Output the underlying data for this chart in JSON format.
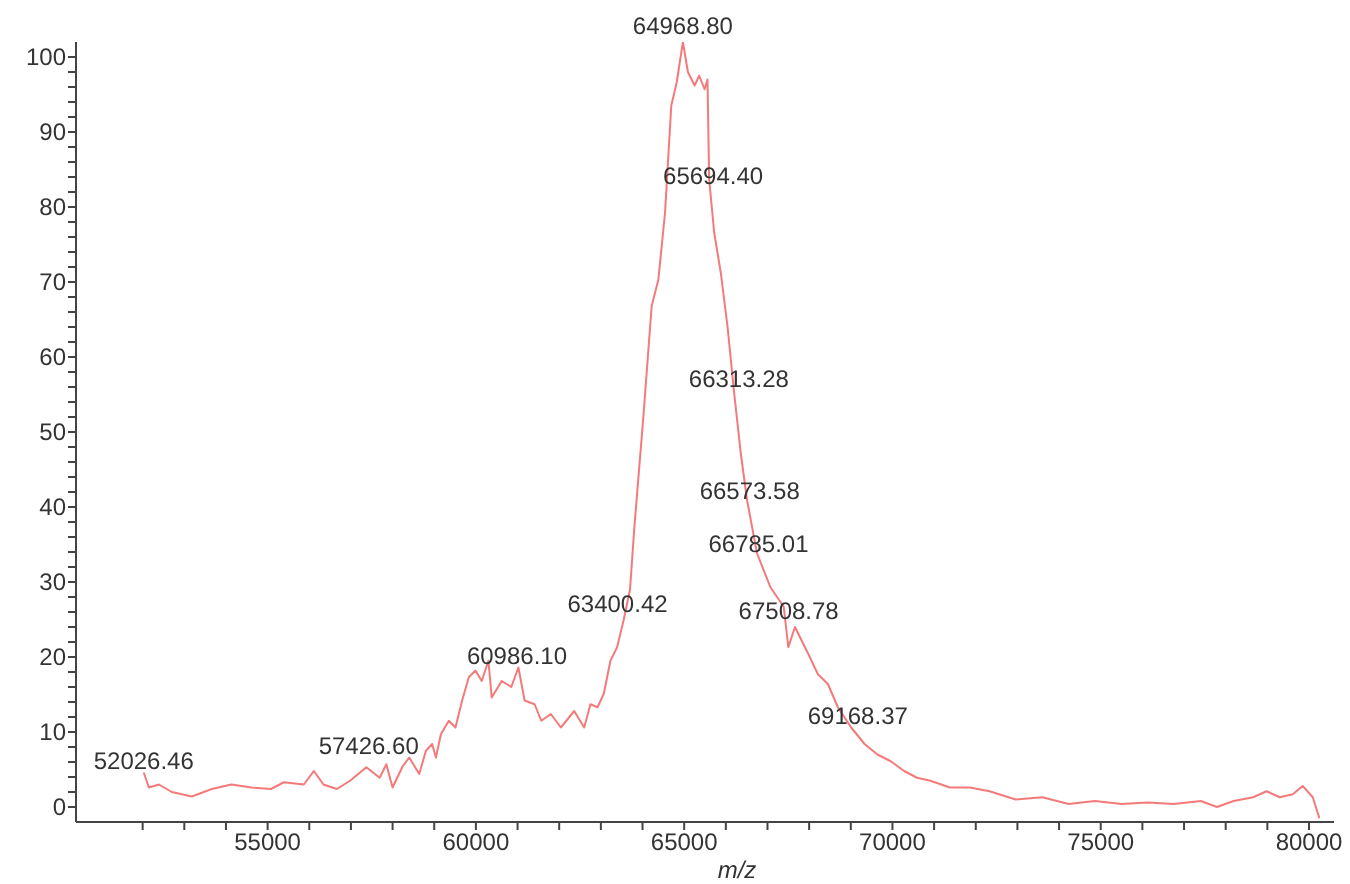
{
  "chart_data": {
    "type": "line",
    "xlabel": "m/z",
    "color": "#f47a7a",
    "marker": "none",
    "line_style": "solid",
    "x": [
      52026,
      52150,
      52390,
      52700,
      53180,
      53660,
      54130,
      54610,
      55080,
      55390,
      55870,
      56110,
      56340,
      56660,
      56980,
      57370,
      57690,
      57850,
      58000,
      58240,
      58400,
      58640,
      58800,
      58950,
      59040,
      59160,
      59350,
      59510,
      59670,
      59830,
      59990,
      60140,
      60300,
      60380,
      60620,
      60850,
      61020,
      61170,
      61410,
      61570,
      61800,
      62040,
      62360,
      62600,
      62750,
      62920,
      63070,
      63230,
      63390,
      63550,
      63700,
      63800,
      64020,
      64220,
      64380,
      64540,
      64690,
      64820,
      64969,
      65090,
      65250,
      65360,
      65490,
      65560,
      65600,
      65720,
      65880,
      66040,
      66200,
      66360,
      66510,
      66750,
      67070,
      67390,
      67500,
      67660,
      67820,
      67980,
      68210,
      68450,
      68690,
      69010,
      69330,
      69640,
      69960,
      70280,
      70590,
      70910,
      71380,
      71860,
      72330,
      72960,
      73600,
      74230,
      74860,
      75500,
      76130,
      76760,
      77400,
      77790,
      78190,
      78660,
      78980,
      79300,
      79610,
      79850,
      80090,
      80250
    ],
    "values": [
      4.6,
      2.6,
      3.0,
      2.0,
      1.4,
      2.4,
      3.0,
      2.6,
      2.4,
      3.3,
      3.0,
      4.8,
      3.0,
      2.4,
      3.5,
      5.3,
      3.9,
      5.7,
      2.6,
      5.4,
      6.6,
      4.4,
      7.5,
      8.4,
      6.6,
      9.7,
      11.5,
      10.6,
      14.2,
      17.3,
      18.2,
      16.8,
      19.5,
      14.6,
      16.8,
      16.0,
      18.6,
      14.2,
      13.7,
      11.5,
      12.4,
      10.6,
      12.8,
      10.6,
      13.7,
      13.3,
      15.1,
      19.5,
      21.3,
      25.0,
      29.0,
      37.0,
      52.0,
      66.8,
      70.3,
      79.2,
      93.5,
      96.6,
      102.0,
      98.0,
      96.2,
      97.5,
      95.7,
      97.0,
      83.7,
      76.6,
      71.2,
      64.1,
      55.2,
      47.1,
      40.9,
      33.8,
      29.3,
      26.7,
      21.3,
      24.0,
      22.2,
      20.4,
      17.7,
      16.4,
      13.3,
      10.6,
      8.4,
      7.0,
      6.1,
      4.8,
      3.9,
      3.5,
      2.6,
      2.6,
      2.1,
      1.0,
      1.3,
      0.4,
      0.8,
      0.4,
      0.6,
      0.4,
      0.8,
      0.0,
      0.8,
      1.3,
      2.1,
      1.3,
      1.7,
      2.8,
      1.3,
      -1.5
    ],
    "xlim": [
      50400,
      80600
    ],
    "ylim": [
      -2,
      102
    ],
    "xticks": [
      {
        "value": 52000,
        "label": null
      },
      {
        "value": 53000,
        "label": null
      },
      {
        "value": 54000,
        "label": null
      },
      55000,
      {
        "value": 56000,
        "label": null
      },
      {
        "value": 57000,
        "label": null
      },
      {
        "value": 58000,
        "label": null
      },
      {
        "value": 59000,
        "label": null
      },
      60000,
      {
        "value": 61000,
        "label": null
      },
      {
        "value": 62000,
        "label": null
      },
      {
        "value": 63000,
        "label": null
      },
      {
        "value": 64000,
        "label": null
      },
      65000,
      {
        "value": 66000,
        "label": null
      },
      {
        "value": 67000,
        "label": null
      },
      {
        "value": 68000,
        "label": null
      },
      {
        "value": 69000,
        "label": null
      },
      70000,
      {
        "value": 71000,
        "label": null
      },
      {
        "value": 72000,
        "label": null
      },
      {
        "value": 73000,
        "label": null
      },
      {
        "value": 74000,
        "label": null
      },
      75000,
      {
        "value": 76000,
        "label": null
      },
      {
        "value": 77000,
        "label": null
      },
      {
        "value": 78000,
        "label": null
      },
      {
        "value": 79000,
        "label": null
      },
      80000
    ],
    "yticks": [
      0,
      {
        "value": 2,
        "label": null
      },
      {
        "value": 4,
        "label": null
      },
      {
        "value": 6,
        "label": null
      },
      {
        "value": 8,
        "label": null
      },
      10,
      {
        "value": 12,
        "label": null
      },
      {
        "value": 14,
        "label": null
      },
      {
        "value": 16,
        "label": null
      },
      {
        "value": 18,
        "label": null
      },
      20,
      {
        "value": 22,
        "label": null
      },
      {
        "value": 24,
        "label": null
      },
      {
        "value": 26,
        "label": null
      },
      {
        "value": 28,
        "label": null
      },
      30,
      {
        "value": 32,
        "label": null
      },
      {
        "value": 34,
        "label": null
      },
      {
        "value": 36,
        "label": null
      },
      {
        "value": 38,
        "label": null
      },
      40,
      {
        "value": 42,
        "label": null
      },
      {
        "value": 44,
        "label": null
      },
      {
        "value": 46,
        "label": null
      },
      {
        "value": 48,
        "label": null
      },
      50,
      {
        "value": 52,
        "label": null
      },
      {
        "value": 54,
        "label": null
      },
      {
        "value": 56,
        "label": null
      },
      {
        "value": 58,
        "label": null
      },
      60,
      {
        "value": 62,
        "label": null
      },
      {
        "value": 64,
        "label": null
      },
      {
        "value": 66,
        "label": null
      },
      {
        "value": 68,
        "label": null
      },
      70,
      {
        "value": 72,
        "label": null
      },
      {
        "value": 74,
        "label": null
      },
      {
        "value": 76,
        "label": null
      },
      {
        "value": 78,
        "label": null
      },
      80,
      {
        "value": 82,
        "label": null
      },
      {
        "value": 84,
        "label": null
      },
      {
        "value": 86,
        "label": null
      },
      {
        "value": 88,
        "label": null
      },
      90,
      {
        "value": 92,
        "label": null
      },
      {
        "value": 94,
        "label": null
      },
      {
        "value": 96,
        "label": null
      },
      {
        "value": 98,
        "label": null
      },
      100
    ],
    "annotations": [
      {
        "text": "52026.46",
        "x": 52026.46,
        "y": 4
      },
      {
        "text": "57426.60",
        "x": 57426.6,
        "y": 6
      },
      {
        "text": "60986.10",
        "x": 60986.1,
        "y": 18
      },
      {
        "text": "63400.42",
        "x": 63400.42,
        "y": 25
      },
      {
        "text": "64968.80",
        "x": 64968.8,
        "y": 102
      },
      {
        "text": "65694.40",
        "x": 65694.4,
        "y": 82
      },
      {
        "text": "66313.28",
        "x": 66313.28,
        "y": 55
      },
      {
        "text": "66573.58",
        "x": 66573.58,
        "y": 40
      },
      {
        "text": "66785.01",
        "x": 66785.01,
        "y": 33
      },
      {
        "text": "67508.78",
        "x": 67508.78,
        "y": 24
      },
      {
        "text": "69168.37",
        "x": 69168.37,
        "y": 10
      }
    ]
  }
}
